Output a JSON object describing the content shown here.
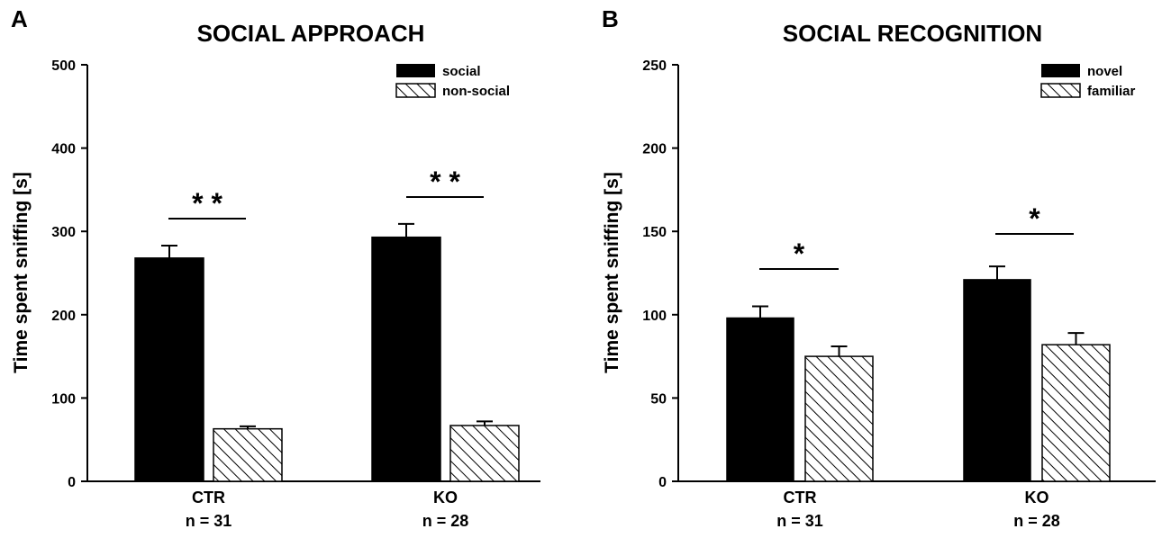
{
  "colors": {
    "ink": "#000000",
    "background": "#ffffff"
  },
  "chart_data": [
    {
      "type": "bar",
      "panel_label": "A",
      "title": "SOCIAL APPROACH",
      "xlabel": "",
      "ylabel": "Time spent sniffing [s]",
      "ylim": [
        0,
        500
      ],
      "yticks": [
        "0",
        "100",
        "200",
        "300",
        "400",
        "500"
      ],
      "categories": [
        "CTR",
        "KO"
      ],
      "sample_sizes": [
        "n = 31",
        "n = 28"
      ],
      "series": [
        {
          "name": "social",
          "fill": "solid",
          "values": [
            268,
            293
          ],
          "errors": [
            15,
            16
          ]
        },
        {
          "name": "non-social",
          "fill": "hatched",
          "values": [
            63,
            67
          ],
          "errors": [
            3,
            5
          ]
        }
      ],
      "significance": [
        "* *",
        "* *"
      ],
      "legend_position": "top-right",
      "grid": false
    },
    {
      "type": "bar",
      "panel_label": "B",
      "title": "SOCIAL RECOGNITION",
      "xlabel": "",
      "ylabel": "Time spent sniffing [s]",
      "ylim": [
        0,
        250
      ],
      "yticks": [
        "0",
        "50",
        "100",
        "150",
        "200",
        "250"
      ],
      "categories": [
        "CTR",
        "KO"
      ],
      "sample_sizes": [
        "n = 31",
        "n = 28"
      ],
      "series": [
        {
          "name": "novel",
          "fill": "solid",
          "values": [
            98,
            121
          ],
          "errors": [
            7,
            8
          ]
        },
        {
          "name": "familiar",
          "fill": "hatched",
          "values": [
            75,
            82
          ],
          "errors": [
            6,
            7
          ]
        }
      ],
      "significance": [
        "*",
        "*"
      ],
      "legend_position": "top-right",
      "grid": false
    }
  ]
}
